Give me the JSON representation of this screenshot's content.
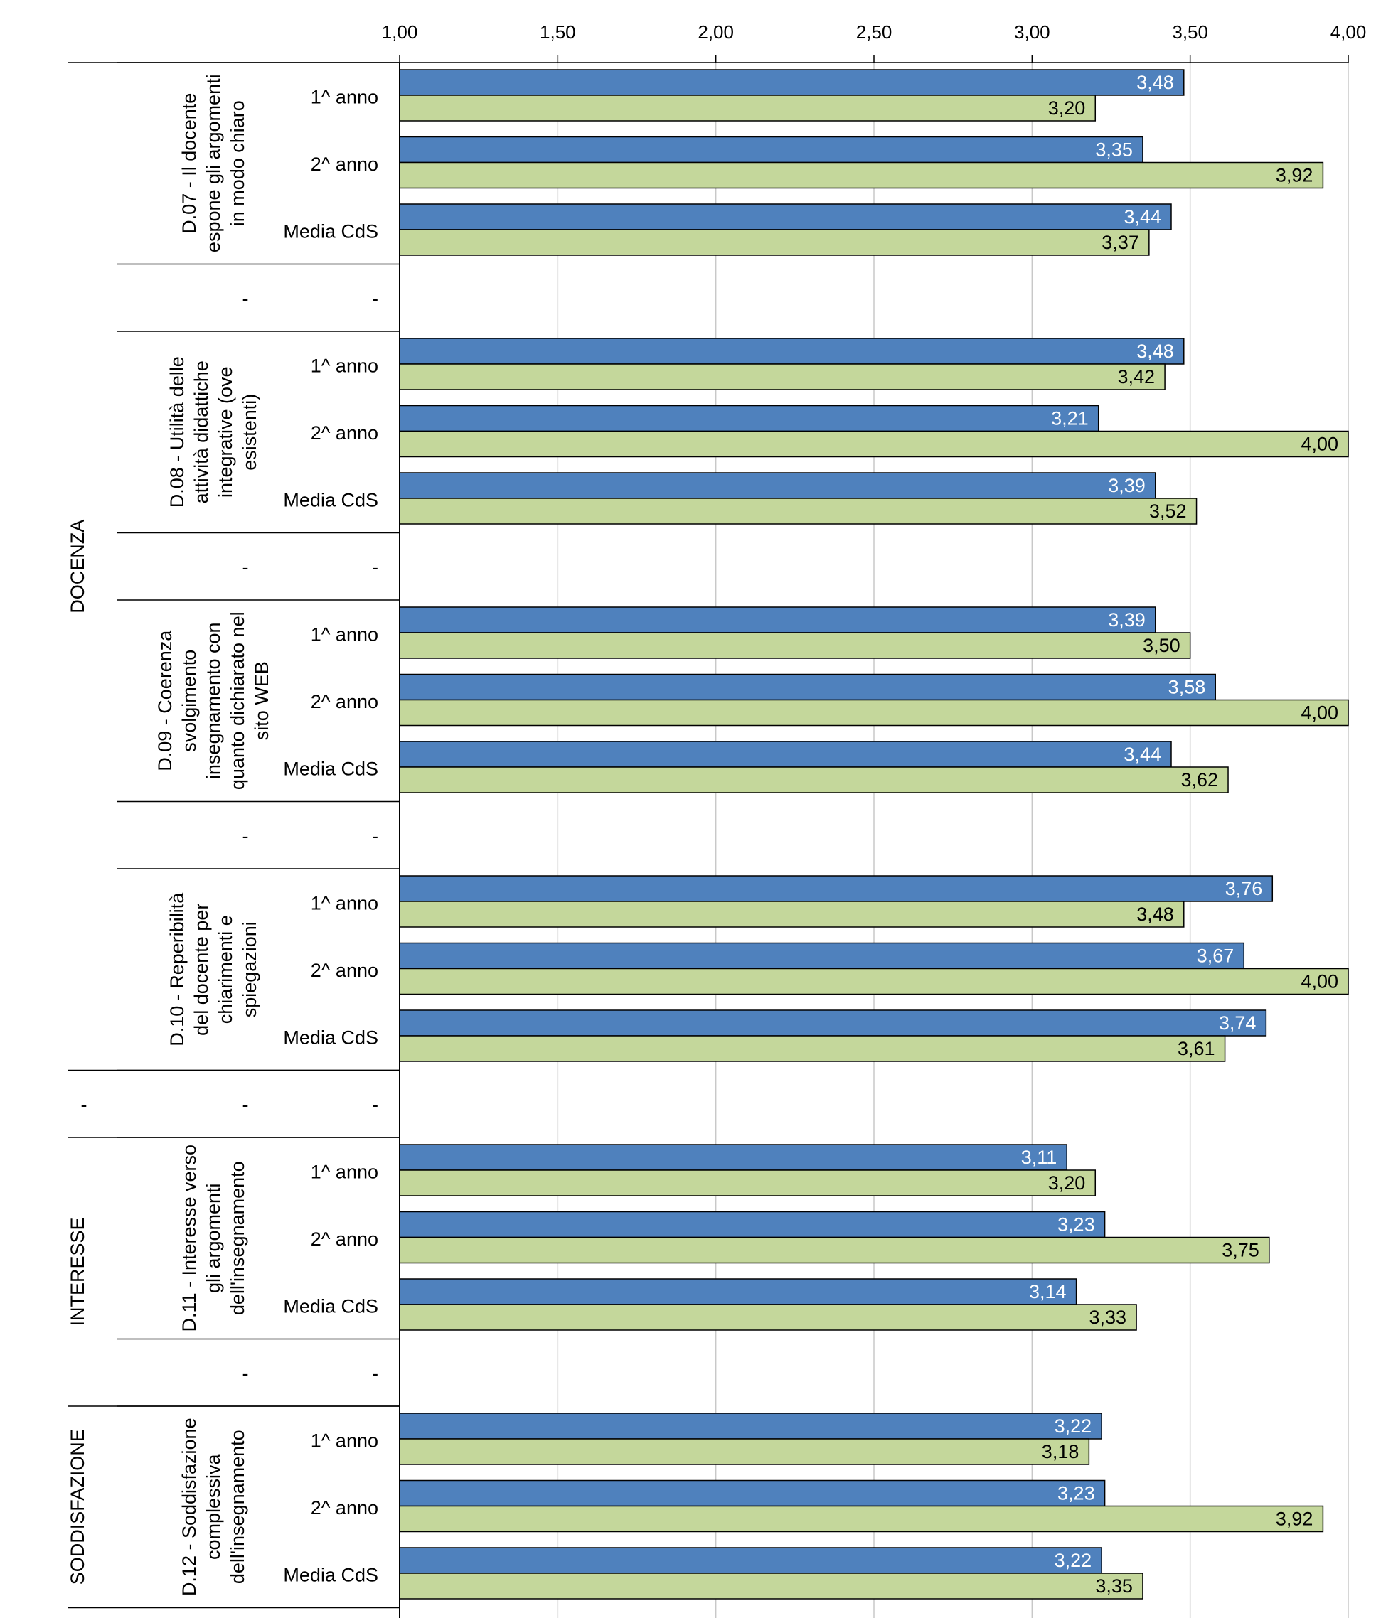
{
  "chart_data": {
    "type": "bar",
    "orientation": "horizontal",
    "title": "",
    "xlabel": "",
    "ylabel": "",
    "xlim": [
      1,
      4
    ],
    "x_ticks": [
      "1,00",
      "1,50",
      "2,00",
      "2,50",
      "3,00",
      "3,50",
      "4,00"
    ],
    "grid": true,
    "legend": false,
    "colors": {
      "series_a": "#4f81bd",
      "series_b": "#c4d79b",
      "outline": "#000000"
    },
    "rows": [
      {
        "group": "DOCENZA",
        "question": "D.07 - Il docente espone gli argomenti in modo chiaro",
        "items": [
          {
            "label": "1^ anno",
            "a": 3.48,
            "a_text": "3,48",
            "b": 3.2,
            "b_text": "3,20"
          },
          {
            "label": "2^ anno",
            "a": 3.35,
            "a_text": "3,35",
            "b": 3.92,
            "b_text": "3,92"
          },
          {
            "label": "Media CdS",
            "a": 3.44,
            "a_text": "3,44",
            "b": 3.37,
            "b_text": "3,37"
          },
          {
            "label": "-",
            "q_label": "-"
          }
        ]
      },
      {
        "group": "DOCENZA",
        "question": "D.08 - Utilità delle attività didattiche integrative (ove esistenti)",
        "items": [
          {
            "label": "1^ anno",
            "a": 3.48,
            "a_text": "3,48",
            "b": 3.42,
            "b_text": "3,42"
          },
          {
            "label": "2^ anno",
            "a": 3.21,
            "a_text": "3,21",
            "b": 4.0,
            "b_text": "4,00"
          },
          {
            "label": "Media CdS",
            "a": 3.39,
            "a_text": "3,39",
            "b": 3.52,
            "b_text": "3,52"
          },
          {
            "label": "-",
            "q_label": "-"
          }
        ]
      },
      {
        "group": "DOCENZA",
        "question": "D.09 - Coerenza svolgimento insegnamento con quanto dichiarato nel sito WEB",
        "items": [
          {
            "label": "1^ anno",
            "a": 3.39,
            "a_text": "3,39",
            "b": 3.5,
            "b_text": "3,50"
          },
          {
            "label": "2^ anno",
            "a": 3.58,
            "a_text": "3,58",
            "b": 4.0,
            "b_text": "4,00"
          },
          {
            "label": "Media CdS",
            "a": 3.44,
            "a_text": "3,44",
            "b": 3.62,
            "b_text": "3,62"
          },
          {
            "label": "-",
            "q_label": "-"
          }
        ]
      },
      {
        "group": "DOCENZA",
        "question": "D.10 - Reperibilità del docente per chiarimenti e spiegazioni",
        "items": [
          {
            "label": "1^ anno",
            "a": 3.76,
            "a_text": "3,76",
            "b": 3.48,
            "b_text": "3,48"
          },
          {
            "label": "2^ anno",
            "a": 3.67,
            "a_text": "3,67",
            "b": 4.0,
            "b_text": "4,00"
          },
          {
            "label": "Media CdS",
            "a": 3.74,
            "a_text": "3,74",
            "b": 3.61,
            "b_text": "3,61"
          },
          {
            "label": "-",
            "q_label": "-",
            "g_label": "-"
          }
        ]
      },
      {
        "group": "INTERESSE",
        "question": "D.11 - Interesse verso gli argomenti dell'insegnamento",
        "items": [
          {
            "label": "1^ anno",
            "a": 3.11,
            "a_text": "3,11",
            "b": 3.2,
            "b_text": "3,20"
          },
          {
            "label": "2^ anno",
            "a": 3.23,
            "a_text": "3,23",
            "b": 3.75,
            "b_text": "3,75"
          },
          {
            "label": "Media CdS",
            "a": 3.14,
            "a_text": "3,14",
            "b": 3.33,
            "b_text": "3,33"
          },
          {
            "label": "-",
            "q_label": "-"
          }
        ]
      },
      {
        "group": "SODDISFAZIONE",
        "question": "D.12 - Soddisfazione complessiva dell'insegnamento",
        "items": [
          {
            "label": "1^ anno",
            "a": 3.22,
            "a_text": "3,22",
            "b": 3.18,
            "b_text": "3,18"
          },
          {
            "label": "2^ anno",
            "a": 3.23,
            "a_text": "3,23",
            "b": 3.92,
            "b_text": "3,92"
          },
          {
            "label": "Media CdS",
            "a": 3.22,
            "a_text": "3,22",
            "b": 3.35,
            "b_text": "3,35"
          }
        ]
      }
    ],
    "groups": [
      {
        "name": "DOCENZA"
      },
      {
        "name": "INTERESSE"
      },
      {
        "name": "SODDISFAZIONE"
      }
    ]
  }
}
